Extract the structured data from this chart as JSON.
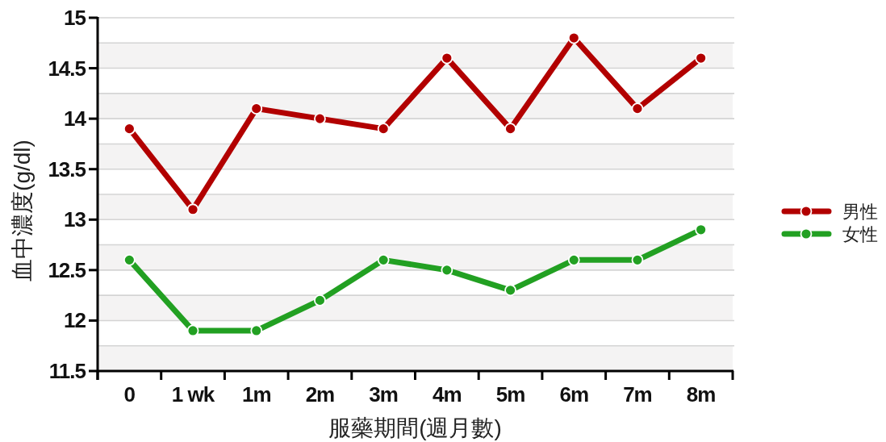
{
  "chart_data": {
    "type": "line",
    "xlabel": "服藥期間(週月數)",
    "ylabel": "血中濃度(g/dl)",
    "categories": [
      "0",
      "1 wk",
      "1m",
      "2m",
      "3m",
      "4m",
      "5m",
      "6m",
      "7m",
      "8m"
    ],
    "series": [
      {
        "name": "男性",
        "color": "#b20000",
        "values": [
          13.9,
          13.1,
          14.1,
          14.0,
          13.9,
          14.6,
          13.9,
          14.8,
          14.1,
          14.6
        ]
      },
      {
        "name": "女性",
        "color": "#22a022",
        "values": [
          12.6,
          11.9,
          11.9,
          12.2,
          12.6,
          12.5,
          12.3,
          12.6,
          12.6,
          12.9
        ]
      }
    ],
    "ylim": [
      11.5,
      15
    ],
    "yticks": [
      11.5,
      12,
      12.5,
      13,
      13.5,
      14,
      14.5,
      15
    ],
    "grid": true,
    "legend": "right",
    "marker": "circle",
    "line_style": "solid"
  }
}
